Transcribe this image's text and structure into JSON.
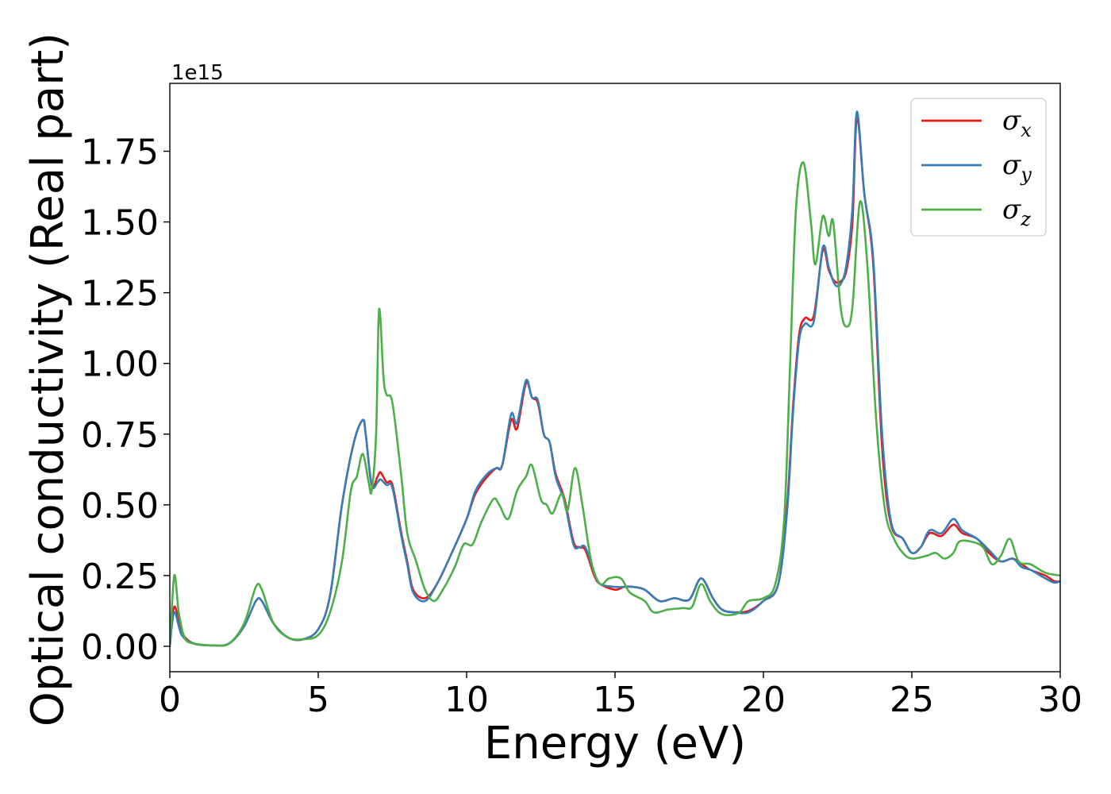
{
  "chart_data": {
    "type": "line",
    "xlabel": "Energy (eV)",
    "ylabel": "Optical conductivity (Real part)",
    "offset_text": "1e15",
    "xlim": [
      0,
      30
    ],
    "ylim": [
      -0.09,
      1.99
    ],
    "x_ticks": [
      0,
      5,
      10,
      15,
      20,
      25,
      30
    ],
    "x_tick_labels": [
      "0",
      "5",
      "10",
      "15",
      "20",
      "25",
      "30"
    ],
    "y_ticks": [
      0.0,
      0.25,
      0.5,
      0.75,
      1.0,
      1.25,
      1.5,
      1.75
    ],
    "y_tick_labels": [
      "0.00",
      "0.25",
      "0.50",
      "0.75",
      "1.00",
      "1.25",
      "1.50",
      "1.75"
    ],
    "grid": false,
    "legend_position": "top-right",
    "series": [
      {
        "name": "σx",
        "sub": "x",
        "color": "#e41a1c",
        "points": [
          [
            0,
            0
          ],
          [
            0.15,
            0.14
          ],
          [
            0.4,
            0.05
          ],
          [
            0.8,
            0.01
          ],
          [
            1.5,
            0.003
          ],
          [
            2.0,
            0.01
          ],
          [
            2.5,
            0.07
          ],
          [
            2.9,
            0.16
          ],
          [
            3.1,
            0.16
          ],
          [
            3.5,
            0.08
          ],
          [
            4.0,
            0.03
          ],
          [
            4.5,
            0.025
          ],
          [
            5.0,
            0.06
          ],
          [
            5.4,
            0.18
          ],
          [
            5.8,
            0.5
          ],
          [
            6.2,
            0.72
          ],
          [
            6.5,
            0.8
          ],
          [
            6.6,
            0.75
          ],
          [
            6.8,
            0.57
          ],
          [
            7.0,
            0.6
          ],
          [
            7.1,
            0.615
          ],
          [
            7.3,
            0.58
          ],
          [
            7.5,
            0.57
          ],
          [
            7.8,
            0.4
          ],
          [
            8.0,
            0.3
          ],
          [
            8.2,
            0.2
          ],
          [
            8.6,
            0.17
          ],
          [
            9.0,
            0.22
          ],
          [
            9.5,
            0.33
          ],
          [
            10.0,
            0.45
          ],
          [
            10.3,
            0.54
          ],
          [
            10.7,
            0.6
          ],
          [
            11.0,
            0.63
          ],
          [
            11.2,
            0.64
          ],
          [
            11.5,
            0.8
          ],
          [
            11.7,
            0.77
          ],
          [
            12.0,
            0.93
          ],
          [
            12.2,
            0.88
          ],
          [
            12.4,
            0.86
          ],
          [
            12.6,
            0.75
          ],
          [
            12.8,
            0.72
          ],
          [
            13.0,
            0.61
          ],
          [
            13.3,
            0.52
          ],
          [
            13.6,
            0.37
          ],
          [
            13.8,
            0.35
          ],
          [
            14.0,
            0.34
          ],
          [
            14.3,
            0.25
          ],
          [
            14.5,
            0.22
          ],
          [
            15.0,
            0.2
          ],
          [
            15.3,
            0.21
          ],
          [
            15.6,
            0.21
          ],
          [
            16.0,
            0.2
          ],
          [
            16.5,
            0.16
          ],
          [
            17.0,
            0.17
          ],
          [
            17.5,
            0.165
          ],
          [
            17.9,
            0.24
          ],
          [
            18.3,
            0.17
          ],
          [
            18.6,
            0.13
          ],
          [
            19.0,
            0.12
          ],
          [
            19.5,
            0.125
          ],
          [
            20.0,
            0.16
          ],
          [
            20.5,
            0.22
          ],
          [
            20.8,
            0.5
          ],
          [
            21.0,
            0.85
          ],
          [
            21.2,
            1.1
          ],
          [
            21.4,
            1.16
          ],
          [
            21.7,
            1.17
          ],
          [
            22.0,
            1.4
          ],
          [
            22.2,
            1.33
          ],
          [
            22.4,
            1.29
          ],
          [
            22.6,
            1.29
          ],
          [
            22.8,
            1.33
          ],
          [
            23.0,
            1.5
          ],
          [
            23.15,
            1.87
          ],
          [
            23.4,
            1.6
          ],
          [
            23.7,
            1.35
          ],
          [
            24.0,
            0.7
          ],
          [
            24.3,
            0.43
          ],
          [
            24.7,
            0.38
          ],
          [
            25.0,
            0.33
          ],
          [
            25.3,
            0.35
          ],
          [
            25.6,
            0.4
          ],
          [
            26.0,
            0.39
          ],
          [
            26.4,
            0.43
          ],
          [
            26.7,
            0.4
          ],
          [
            27.2,
            0.38
          ],
          [
            27.6,
            0.33
          ],
          [
            28.0,
            0.3
          ],
          [
            28.4,
            0.31
          ],
          [
            28.7,
            0.29
          ],
          [
            29.0,
            0.27
          ],
          [
            29.5,
            0.25
          ],
          [
            29.8,
            0.23
          ],
          [
            30.0,
            0.23
          ]
        ]
      },
      {
        "name": "σy",
        "sub": "y",
        "color": "#377eb8",
        "points": [
          [
            0,
            0
          ],
          [
            0.15,
            0.12
          ],
          [
            0.4,
            0.04
          ],
          [
            0.8,
            0.01
          ],
          [
            1.5,
            0.003
          ],
          [
            2.0,
            0.01
          ],
          [
            2.5,
            0.07
          ],
          [
            2.9,
            0.16
          ],
          [
            3.1,
            0.16
          ],
          [
            3.5,
            0.08
          ],
          [
            4.0,
            0.03
          ],
          [
            4.5,
            0.025
          ],
          [
            5.0,
            0.06
          ],
          [
            5.4,
            0.18
          ],
          [
            5.8,
            0.5
          ],
          [
            6.2,
            0.72
          ],
          [
            6.5,
            0.8
          ],
          [
            6.6,
            0.75
          ],
          [
            6.8,
            0.57
          ],
          [
            7.0,
            0.58
          ],
          [
            7.1,
            0.59
          ],
          [
            7.3,
            0.57
          ],
          [
            7.5,
            0.56
          ],
          [
            7.8,
            0.39
          ],
          [
            8.0,
            0.29
          ],
          [
            8.2,
            0.19
          ],
          [
            8.6,
            0.16
          ],
          [
            9.0,
            0.22
          ],
          [
            9.5,
            0.33
          ],
          [
            10.0,
            0.45
          ],
          [
            10.3,
            0.55
          ],
          [
            10.7,
            0.61
          ],
          [
            11.0,
            0.63
          ],
          [
            11.2,
            0.64
          ],
          [
            11.5,
            0.82
          ],
          [
            11.7,
            0.79
          ],
          [
            12.0,
            0.94
          ],
          [
            12.2,
            0.88
          ],
          [
            12.4,
            0.87
          ],
          [
            12.6,
            0.75
          ],
          [
            12.8,
            0.72
          ],
          [
            13.0,
            0.6
          ],
          [
            13.3,
            0.51
          ],
          [
            13.6,
            0.36
          ],
          [
            13.8,
            0.35
          ],
          [
            14.0,
            0.35
          ],
          [
            14.3,
            0.26
          ],
          [
            14.5,
            0.22
          ],
          [
            15.0,
            0.21
          ],
          [
            15.3,
            0.21
          ],
          [
            15.6,
            0.21
          ],
          [
            16.0,
            0.2
          ],
          [
            16.5,
            0.16
          ],
          [
            17.0,
            0.17
          ],
          [
            17.5,
            0.165
          ],
          [
            17.9,
            0.24
          ],
          [
            18.3,
            0.17
          ],
          [
            18.6,
            0.13
          ],
          [
            19.0,
            0.12
          ],
          [
            19.5,
            0.12
          ],
          [
            20.0,
            0.16
          ],
          [
            20.5,
            0.22
          ],
          [
            20.8,
            0.48
          ],
          [
            21.0,
            0.83
          ],
          [
            21.2,
            1.08
          ],
          [
            21.4,
            1.14
          ],
          [
            21.7,
            1.15
          ],
          [
            22.0,
            1.41
          ],
          [
            22.2,
            1.34
          ],
          [
            22.4,
            1.28
          ],
          [
            22.6,
            1.28
          ],
          [
            22.8,
            1.35
          ],
          [
            23.0,
            1.55
          ],
          [
            23.15,
            1.89
          ],
          [
            23.4,
            1.6
          ],
          [
            23.7,
            1.37
          ],
          [
            24.0,
            0.75
          ],
          [
            24.3,
            0.44
          ],
          [
            24.7,
            0.38
          ],
          [
            25.0,
            0.33
          ],
          [
            25.3,
            0.35
          ],
          [
            25.6,
            0.41
          ],
          [
            26.0,
            0.4
          ],
          [
            26.4,
            0.45
          ],
          [
            26.7,
            0.41
          ],
          [
            27.2,
            0.38
          ],
          [
            27.6,
            0.34
          ],
          [
            28.0,
            0.3
          ],
          [
            28.4,
            0.31
          ],
          [
            28.7,
            0.28
          ],
          [
            29.0,
            0.27
          ],
          [
            29.5,
            0.24
          ],
          [
            29.8,
            0.225
          ],
          [
            30.0,
            0.23
          ]
        ]
      },
      {
        "name": "σz",
        "sub": "z",
        "color": "#4daf4a",
        "points": [
          [
            0,
            0
          ],
          [
            0.15,
            0.25
          ],
          [
            0.3,
            0.12
          ],
          [
            0.5,
            0.03
          ],
          [
            0.8,
            0.01
          ],
          [
            1.5,
            0.003
          ],
          [
            2.0,
            0.01
          ],
          [
            2.5,
            0.08
          ],
          [
            2.9,
            0.21
          ],
          [
            3.1,
            0.2
          ],
          [
            3.5,
            0.08
          ],
          [
            4.0,
            0.03
          ],
          [
            4.5,
            0.025
          ],
          [
            5.0,
            0.04
          ],
          [
            5.4,
            0.12
          ],
          [
            5.8,
            0.3
          ],
          [
            6.1,
            0.55
          ],
          [
            6.3,
            0.6
          ],
          [
            6.5,
            0.68
          ],
          [
            6.7,
            0.58
          ],
          [
            6.8,
            0.55
          ],
          [
            6.95,
            0.75
          ],
          [
            7.05,
            1.19
          ],
          [
            7.2,
            0.95
          ],
          [
            7.3,
            0.89
          ],
          [
            7.5,
            0.86
          ],
          [
            7.8,
            0.6
          ],
          [
            8.0,
            0.4
          ],
          [
            8.3,
            0.3
          ],
          [
            8.6,
            0.2
          ],
          [
            8.9,
            0.16
          ],
          [
            9.2,
            0.2
          ],
          [
            9.6,
            0.28
          ],
          [
            9.9,
            0.36
          ],
          [
            10.2,
            0.36
          ],
          [
            10.5,
            0.44
          ],
          [
            10.9,
            0.52
          ],
          [
            11.1,
            0.5
          ],
          [
            11.4,
            0.45
          ],
          [
            11.7,
            0.55
          ],
          [
            12.0,
            0.6
          ],
          [
            12.2,
            0.64
          ],
          [
            12.5,
            0.52
          ],
          [
            12.7,
            0.5
          ],
          [
            12.9,
            0.47
          ],
          [
            13.2,
            0.54
          ],
          [
            13.4,
            0.48
          ],
          [
            13.65,
            0.63
          ],
          [
            13.9,
            0.5
          ],
          [
            14.2,
            0.3
          ],
          [
            14.5,
            0.22
          ],
          [
            14.8,
            0.24
          ],
          [
            15.2,
            0.24
          ],
          [
            15.5,
            0.19
          ],
          [
            16.0,
            0.16
          ],
          [
            16.3,
            0.12
          ],
          [
            16.8,
            0.13
          ],
          [
            17.3,
            0.135
          ],
          [
            17.6,
            0.14
          ],
          [
            17.9,
            0.22
          ],
          [
            18.2,
            0.16
          ],
          [
            18.5,
            0.12
          ],
          [
            18.8,
            0.11
          ],
          [
            19.2,
            0.12
          ],
          [
            19.5,
            0.16
          ],
          [
            20.0,
            0.17
          ],
          [
            20.4,
            0.22
          ],
          [
            20.7,
            0.45
          ],
          [
            20.9,
            1.0
          ],
          [
            21.1,
            1.55
          ],
          [
            21.35,
            1.71
          ],
          [
            21.6,
            1.5
          ],
          [
            21.75,
            1.35
          ],
          [
            22.0,
            1.52
          ],
          [
            22.2,
            1.45
          ],
          [
            22.35,
            1.5
          ],
          [
            22.6,
            1.2
          ],
          [
            22.8,
            1.13
          ],
          [
            23.0,
            1.2
          ],
          [
            23.25,
            1.57
          ],
          [
            23.5,
            1.35
          ],
          [
            23.8,
            0.8
          ],
          [
            24.1,
            0.48
          ],
          [
            24.4,
            0.38
          ],
          [
            24.7,
            0.33
          ],
          [
            25.0,
            0.31
          ],
          [
            25.5,
            0.32
          ],
          [
            25.8,
            0.33
          ],
          [
            26.1,
            0.31
          ],
          [
            26.4,
            0.33
          ],
          [
            26.6,
            0.37
          ],
          [
            27.0,
            0.37
          ],
          [
            27.4,
            0.35
          ],
          [
            27.7,
            0.29
          ],
          [
            28.0,
            0.32
          ],
          [
            28.3,
            0.38
          ],
          [
            28.6,
            0.3
          ],
          [
            29.0,
            0.29
          ],
          [
            29.5,
            0.26
          ],
          [
            30.0,
            0.25
          ]
        ]
      }
    ]
  }
}
